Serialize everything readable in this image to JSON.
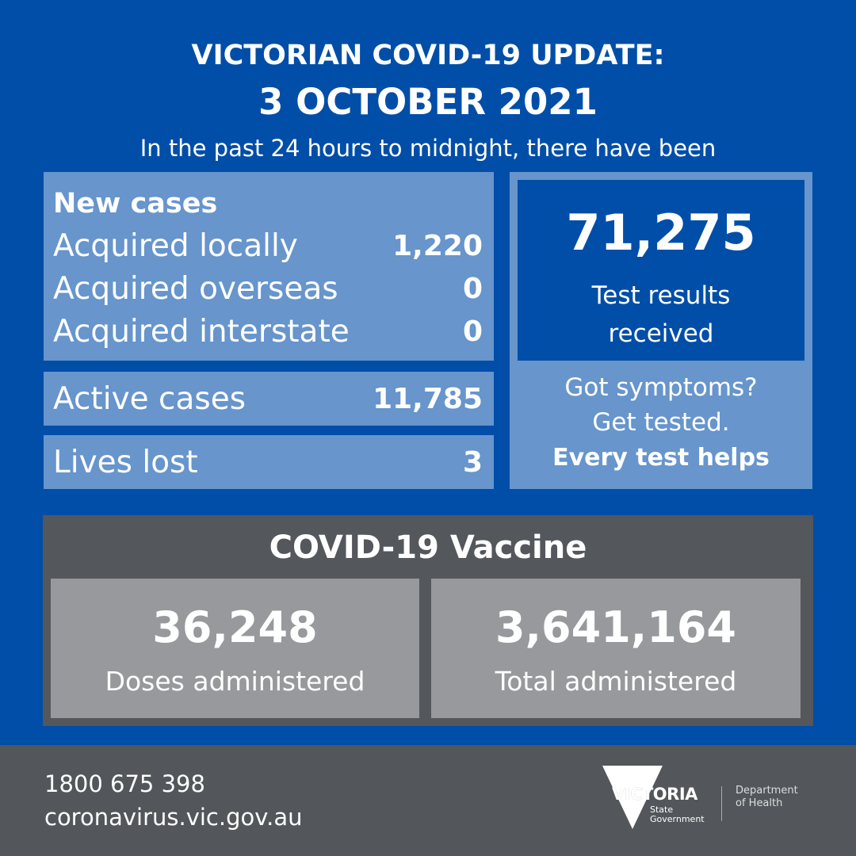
{
  "header": {
    "title": "VICTORIAN COVID-19 UPDATE:",
    "date": "3 OCTOBER 2021",
    "subtitle": "In the past 24 hours to midnight, there have been"
  },
  "new_cases": {
    "heading": "New cases",
    "rows": [
      {
        "label": "Acquired locally",
        "value": "1,220"
      },
      {
        "label": "Acquired overseas",
        "value": "0"
      },
      {
        "label": "Acquired interstate",
        "value": "0"
      }
    ]
  },
  "active_cases": {
    "label": "Active cases",
    "value": "11,785"
  },
  "lives_lost": {
    "label": "Lives lost",
    "value": "3"
  },
  "tests": {
    "value": "71,275",
    "label_1": "Test results",
    "label_2": "received",
    "line_1": "Got symptoms?",
    "line_2": "Get tested.",
    "line_3": "Every test helps"
  },
  "vaccine": {
    "heading": "COVID-19 Vaccine",
    "doses": {
      "value": "36,248",
      "label": "Doses administered"
    },
    "total": {
      "value": "3,641,164",
      "label": "Total administered"
    }
  },
  "footer": {
    "phone": "1800 675 398",
    "website": "coronavirus.vic.gov.au",
    "logo_text": "VICTORIA",
    "logo_sub_1": "State",
    "logo_sub_2": "Government",
    "dept_1": "Department",
    "dept_2": "of Health"
  },
  "colors": {
    "background": "#004ea8",
    "panel": "#6795cc",
    "vaccine_bg": "#54575c",
    "vaccine_panel": "#97999c",
    "footer": "#53565a"
  }
}
